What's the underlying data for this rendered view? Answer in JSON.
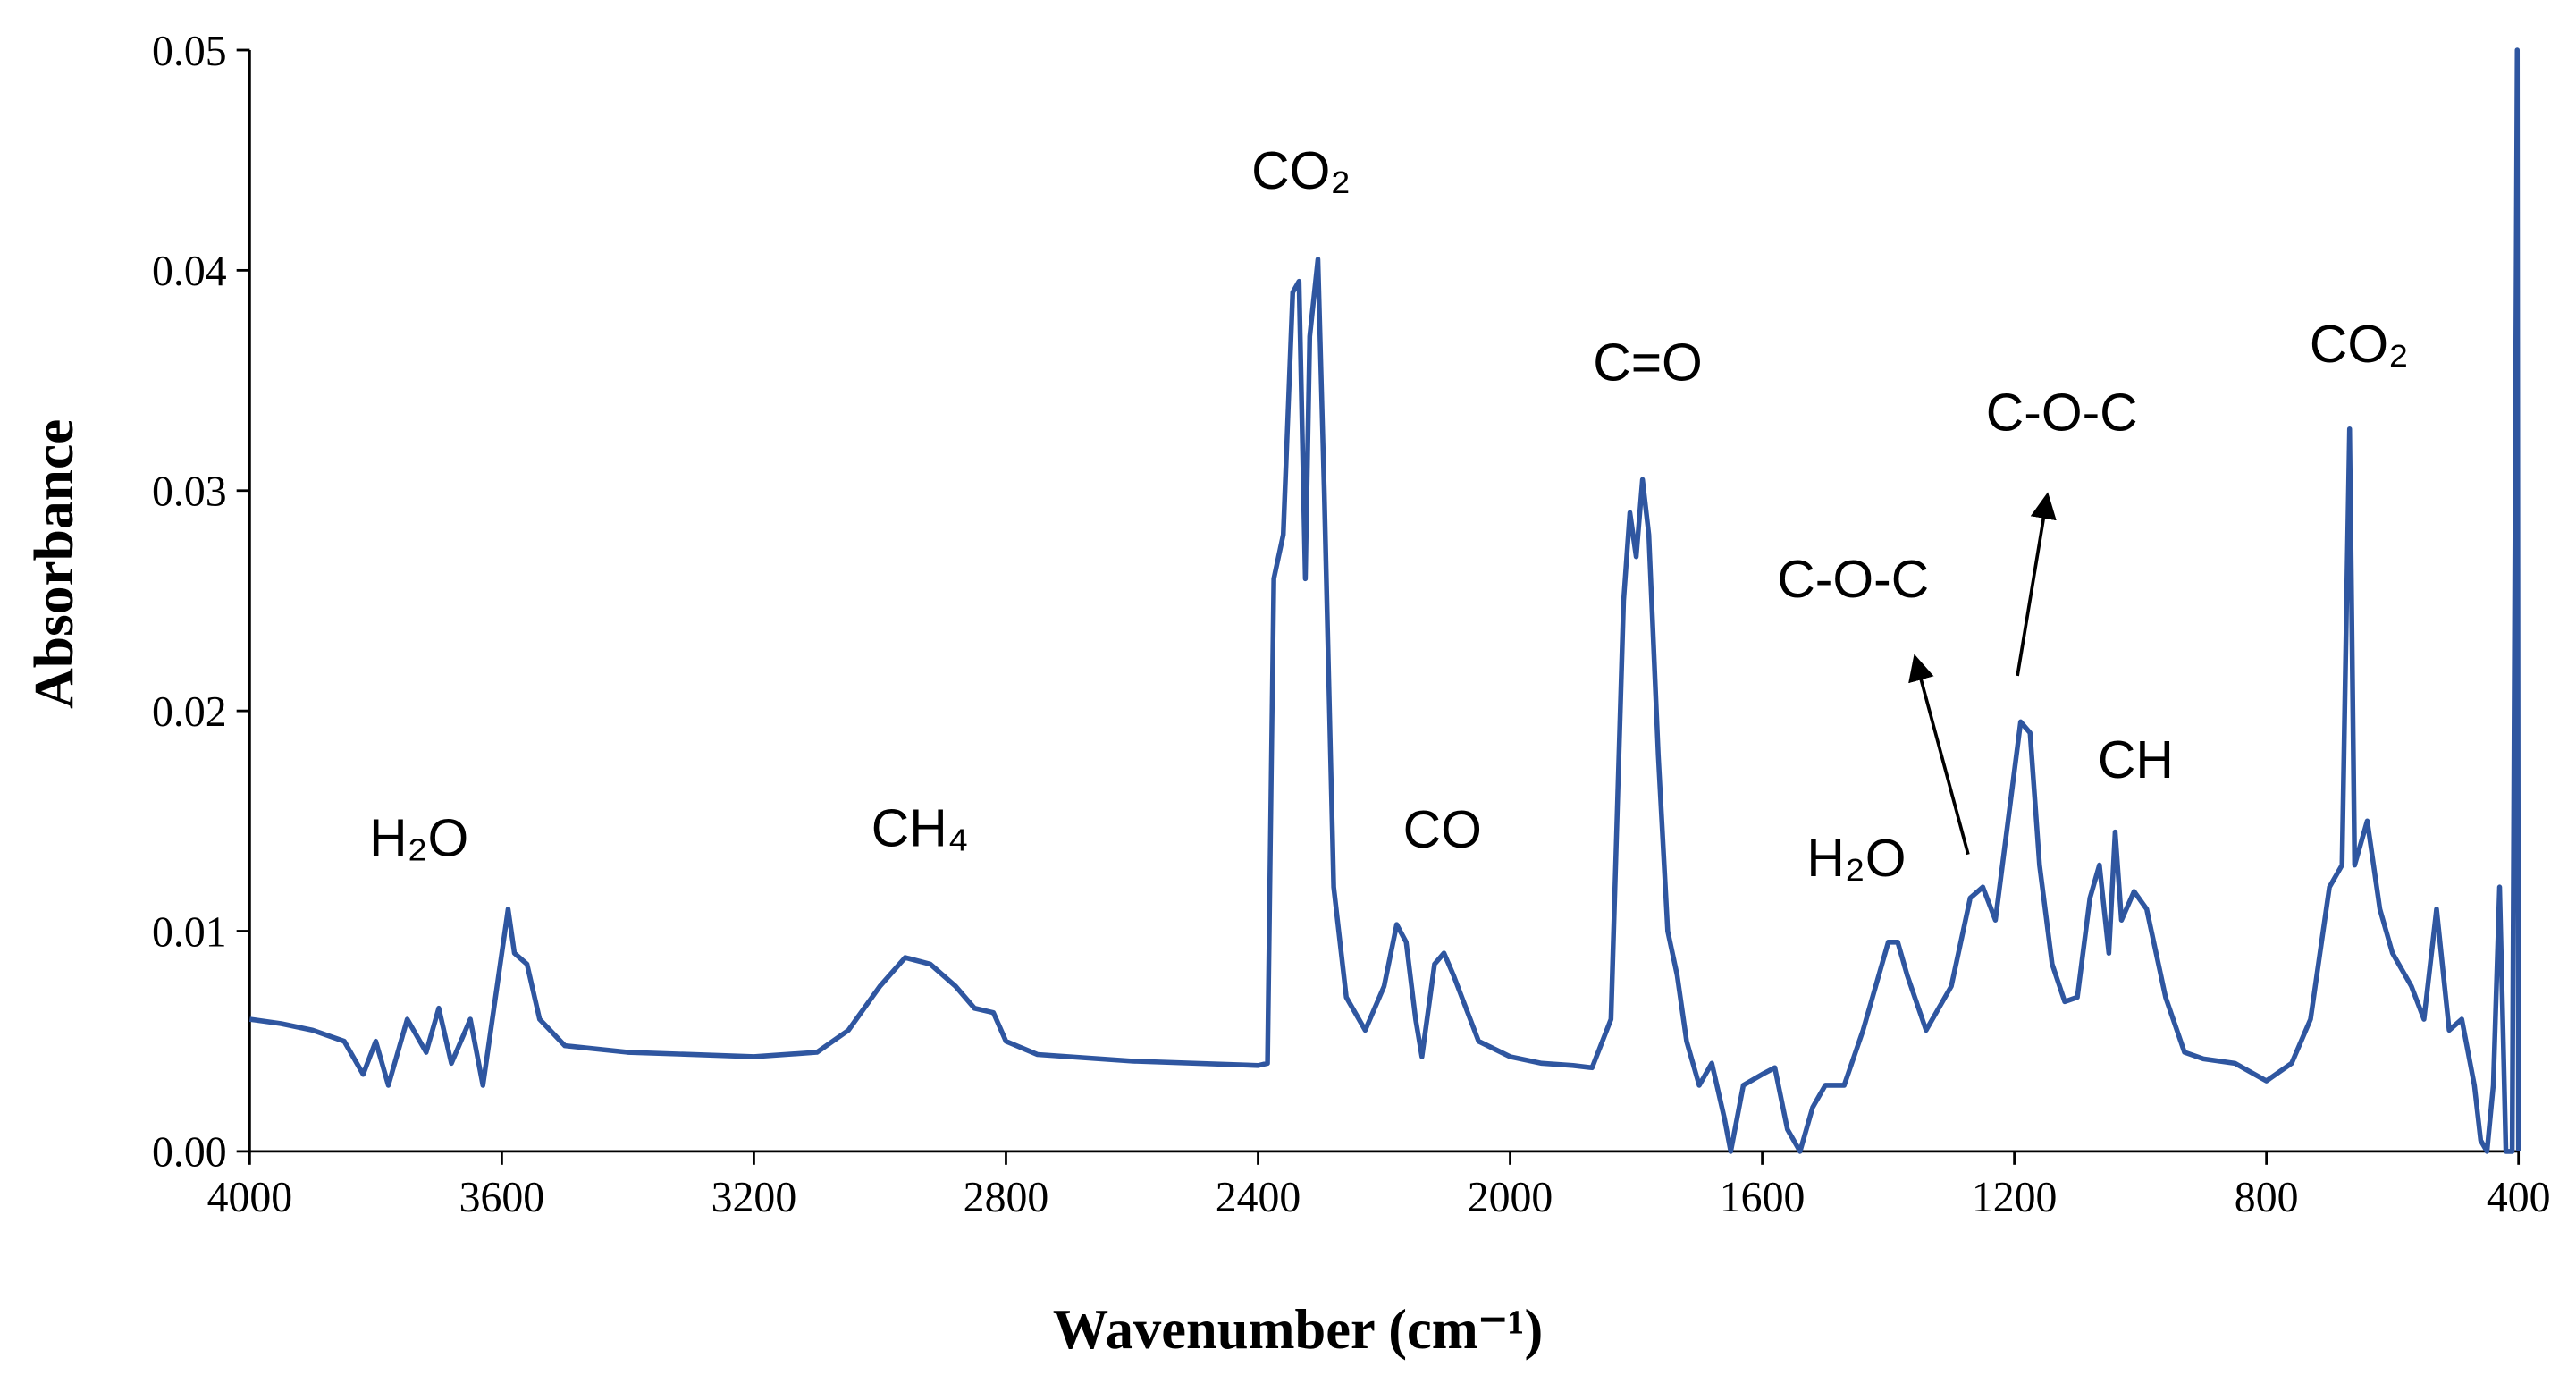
{
  "chart_data": {
    "type": "line",
    "xlabel": "Wavenumber (cm⁻¹)",
    "ylabel": "Absorbance",
    "xlim": [
      4000,
      400
    ],
    "ylim": [
      0,
      0.05
    ],
    "xticks": [
      4000,
      3600,
      3200,
      2800,
      2400,
      2000,
      1600,
      1200,
      800,
      400
    ],
    "yticks": [
      {
        "value": 0,
        "label": "0.00"
      },
      0.01,
      0.02,
      0.03,
      0.04,
      0.05
    ],
    "annotations": [
      "H₂O",
      "CH₄",
      "CO₂",
      "CO",
      "C=O",
      "H₂O",
      "C-O-C",
      "C-O-C",
      "CH",
      "CO₂"
    ],
    "series": [
      {
        "color": "#2f56a0",
        "x": [
          4000,
          3950,
          3900,
          3850,
          3820,
          3800,
          3780,
          3750,
          3720,
          3700,
          3680,
          3650,
          3630,
          3600,
          3590,
          3580,
          3560,
          3540,
          3500,
          3400,
          3300,
          3200,
          3100,
          3050,
          3000,
          2960,
          2920,
          2880,
          2850,
          2820,
          2800,
          2750,
          2600,
          2400,
          2385,
          2375,
          2360,
          2345,
          2335,
          2325,
          2318,
          2305,
          2295,
          2280,
          2260,
          2230,
          2200,
          2180,
          2165,
          2150,
          2140,
          2120,
          2105,
          2090,
          2050,
          2000,
          1950,
          1900,
          1870,
          1840,
          1820,
          1810,
          1800,
          1790,
          1780,
          1765,
          1750,
          1735,
          1720,
          1700,
          1680,
          1660,
          1650,
          1630,
          1600,
          1580,
          1560,
          1540,
          1520,
          1500,
          1470,
          1440,
          1420,
          1400,
          1385,
          1370,
          1340,
          1300,
          1270,
          1250,
          1230,
          1210,
          1190,
          1175,
          1160,
          1140,
          1120,
          1100,
          1080,
          1065,
          1050,
          1040,
          1030,
          1010,
          990,
          960,
          930,
          900,
          850,
          800,
          760,
          730,
          715,
          700,
          680,
          668,
          660,
          640,
          620,
          600,
          570,
          550,
          530,
          510,
          490,
          470,
          460,
          450,
          440,
          430,
          420,
          410,
          402,
          400
        ],
        "values": [
          0.006,
          0.0058,
          0.0055,
          0.005,
          0.0035,
          0.005,
          0.003,
          0.006,
          0.0045,
          0.0065,
          0.004,
          0.006,
          0.003,
          0.009,
          0.011,
          0.009,
          0.0085,
          0.006,
          0.0048,
          0.0045,
          0.0044,
          0.0043,
          0.0045,
          0.0055,
          0.0075,
          0.0088,
          0.0085,
          0.0075,
          0.0065,
          0.0063,
          0.005,
          0.0044,
          0.0041,
          0.0039,
          0.004,
          0.026,
          0.028,
          0.039,
          0.0395,
          0.026,
          0.037,
          0.0405,
          0.03,
          0.012,
          0.007,
          0.0055,
          0.0075,
          0.0103,
          0.0095,
          0.006,
          0.0043,
          0.0085,
          0.009,
          0.008,
          0.005,
          0.0043,
          0.004,
          0.0039,
          0.0038,
          0.006,
          0.025,
          0.029,
          0.027,
          0.0305,
          0.028,
          0.018,
          0.01,
          0.008,
          0.005,
          0.003,
          0.004,
          0.0015,
          0.0,
          0.003,
          0.0035,
          0.0038,
          0.001,
          0.0,
          0.002,
          0.003,
          0.003,
          0.0055,
          0.0075,
          0.0095,
          0.0095,
          0.008,
          0.0055,
          0.0075,
          0.0115,
          0.012,
          0.0105,
          0.015,
          0.0195,
          0.019,
          0.013,
          0.0085,
          0.0068,
          0.007,
          0.0115,
          0.013,
          0.009,
          0.0145,
          0.0105,
          0.0118,
          0.011,
          0.007,
          0.0045,
          0.0042,
          0.004,
          0.0032,
          0.004,
          0.006,
          0.009,
          0.012,
          0.013,
          0.0328,
          0.013,
          0.015,
          0.011,
          0.009,
          0.0075,
          0.006,
          0.011,
          0.0055,
          0.006,
          0.003,
          0.0005,
          0.0,
          0.003,
          0.012,
          0.0,
          0.0,
          0.05,
          0.0
        ]
      }
    ]
  }
}
